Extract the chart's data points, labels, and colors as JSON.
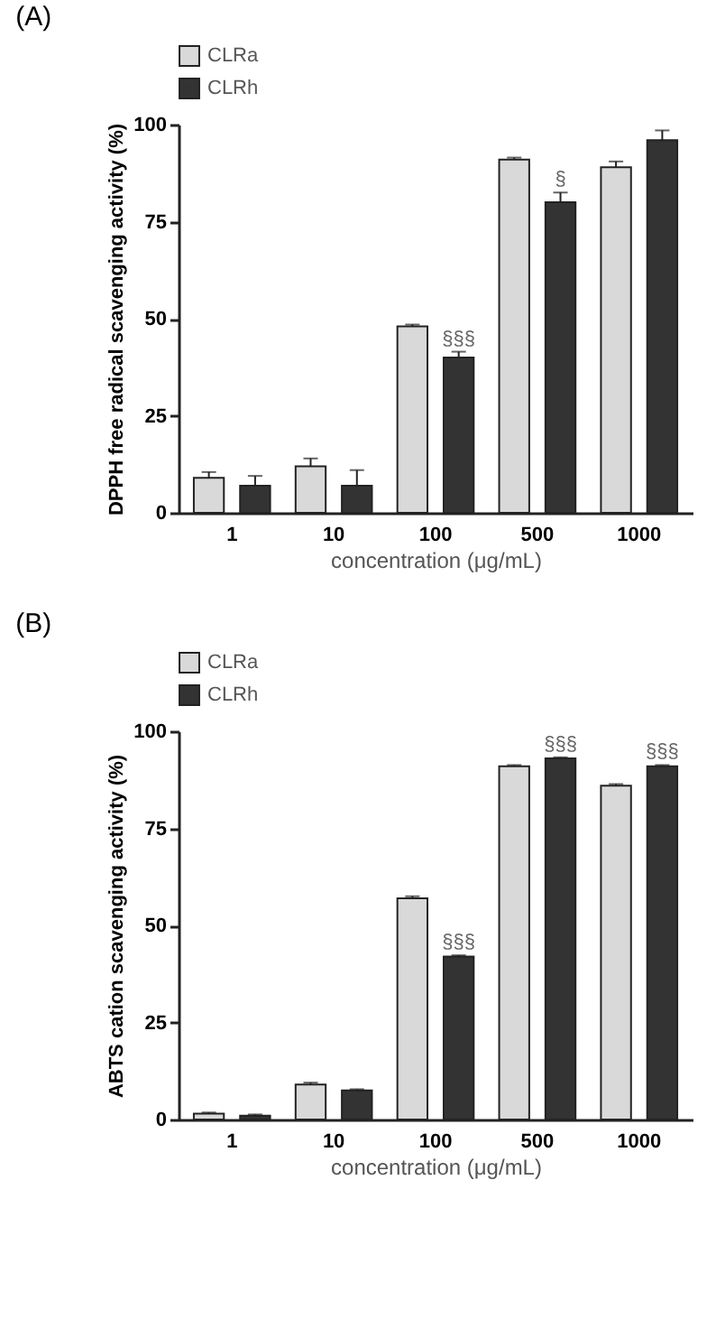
{
  "chart_data": [
    {
      "type": "bar",
      "title": "(A)",
      "xlabel": "concentration (μg/mL)",
      "ylabel": "DPPH free radical scavenging activity (%)",
      "categories": [
        "1",
        "10",
        "100",
        "500",
        "1000"
      ],
      "series": [
        {
          "name": "CLRa",
          "color": "#d9d9d9",
          "values": [
            9,
            12,
            48,
            91,
            89
          ],
          "errors": [
            1.5,
            2,
            0.5,
            0.5,
            1.5
          ]
        },
        {
          "name": "CLRh",
          "color": "#333333",
          "values": [
            7,
            7,
            40,
            80,
            96
          ],
          "errors": [
            2.5,
            4,
            1.5,
            2.5,
            2.5
          ]
        }
      ],
      "ylim": [
        0,
        100
      ],
      "yticks": [
        0,
        25,
        50,
        75,
        100
      ],
      "legend": "top left",
      "annotations": [
        {
          "text": "§§§",
          "x": "100",
          "y": 40
        },
        {
          "text": "§",
          "x": "500",
          "y": 80
        }
      ]
    },
    {
      "type": "bar",
      "title": "(B)",
      "xlabel": "concentration (μg/mL)",
      "ylabel": "ABTS cation scavenging activity (%)",
      "categories": [
        "1",
        "10",
        "100",
        "500",
        "1000"
      ],
      "series": [
        {
          "name": "CLRa",
          "color": "#d9d9d9",
          "values": [
            1.5,
            9,
            57,
            91,
            86
          ],
          "errors": [
            0.3,
            0.5,
            0.5,
            0.3,
            0.4
          ]
        },
        {
          "name": "CLRh",
          "color": "#333333",
          "values": [
            1,
            7.5,
            42,
            93,
            91
          ],
          "errors": [
            0.3,
            0.3,
            0.3,
            0.3,
            0.3
          ]
        }
      ],
      "ylim": [
        0,
        100
      ],
      "yticks": [
        0,
        25,
        50,
        75,
        100
      ],
      "legend": "top left",
      "annotations": [
        {
          "text": "§§§",
          "x": "100",
          "y": 42
        },
        {
          "text": "§§§",
          "x": "500",
          "y": 93
        },
        {
          "text": "§§§",
          "x": "1000",
          "y": 91
        }
      ]
    }
  ]
}
